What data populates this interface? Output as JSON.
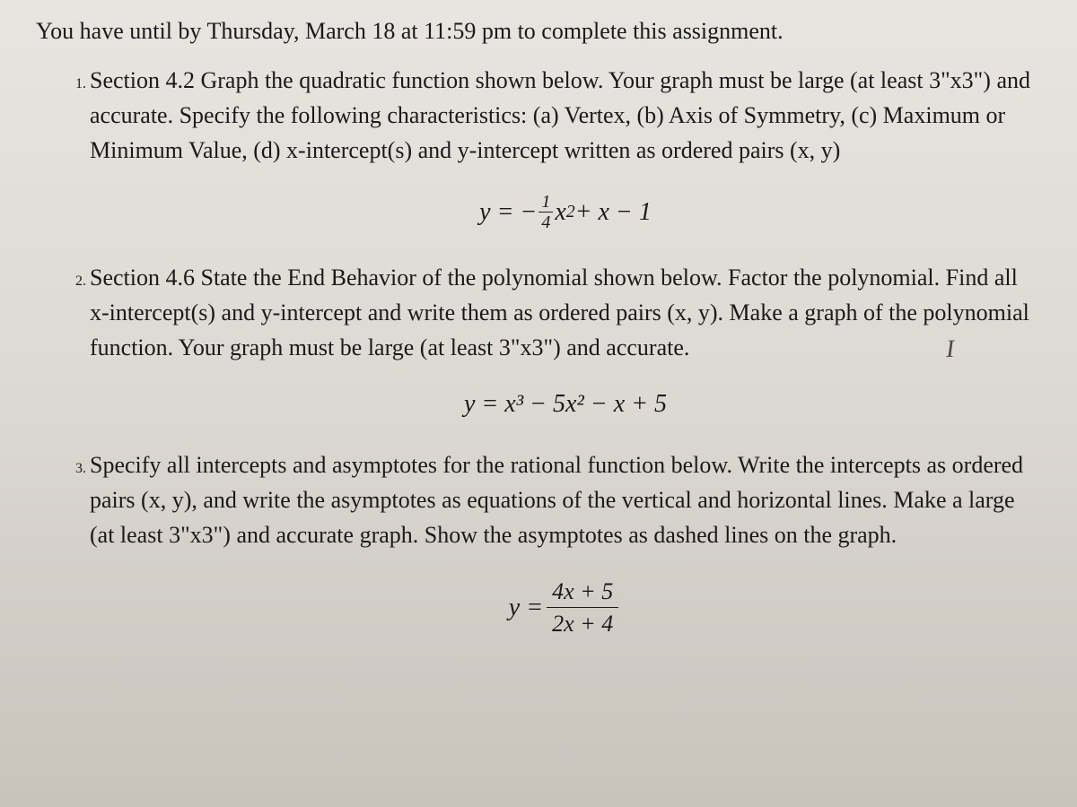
{
  "text_color": "#1a1a1a",
  "background_top": "#e8e5e0",
  "background_bottom": "#c8c4bc",
  "body_fontsize": 26,
  "equation_fontsize": 28,
  "deadline": "You have until by Thursday, March 18 at 11:59 pm to complete this assignment.",
  "problems": {
    "p1": {
      "text": "Section 4.2  Graph the quadratic function shown below.  Your graph must be large (at least 3\"x3\") and accurate.  Specify the following characteristics: (a) Vertex, (b) Axis of Symmetry, (c) Maximum or Minimum Value, (d) x-intercept(s) and y-intercept written as ordered pairs (x, y)",
      "eq_lhs": "y = −",
      "eq_frac_num": "1",
      "eq_frac_den": "4",
      "eq_x2": "x",
      "eq_rhs": " + x − 1"
    },
    "p2": {
      "text": "Section 4.6  State the End Behavior of the polynomial shown below.  Factor the polynomial.  Find all x-intercept(s) and y-intercept and write them as ordered pairs (x, y).  Make a graph of the polynomial function.  Your graph must be large (at least 3\"x3\") and accurate.",
      "eq": "y = x³ − 5x² − x + 5"
    },
    "p3": {
      "text": "Specify all intercepts and asymptotes for the rational function below.  Write the intercepts as ordered pairs (x, y), and write the asymptotes as equations of the vertical and horizontal lines.  Make a large (at least 3\"x3\") and accurate graph.  Show the asymptotes as dashed lines on the graph.",
      "eq_lhs": "y = ",
      "eq_frac_num": "4x + 5",
      "eq_frac_den": "2x + 4"
    }
  },
  "hand_annotation": "I"
}
